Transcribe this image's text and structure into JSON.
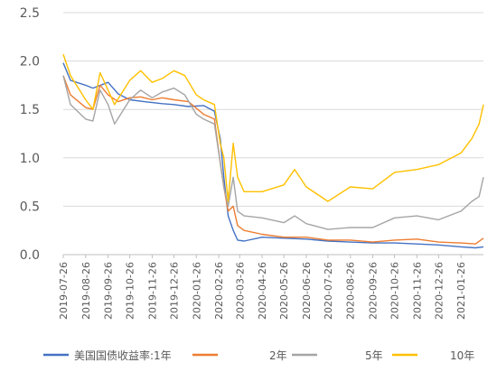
{
  "chart_data": {
    "type": "line",
    "title": "",
    "xlabel": "",
    "ylabel": "",
    "ylim": [
      0,
      2.5
    ],
    "y_ticks": [
      "0.0",
      "0.5",
      "1.0",
      "1.5",
      "2.0",
      "2.5"
    ],
    "x_range": [
      "2019-07-26",
      "2021-02-26"
    ],
    "x_tick_labels": [
      "2019-07-26",
      "2019-08-26",
      "2019-09-26",
      "2019-10-26",
      "2019-11-26",
      "2019-12-26",
      "2020-01-26",
      "2020-02-26",
      "2020-03-26",
      "2020-04-26",
      "2020-05-26",
      "2020-06-26",
      "2020-07-26",
      "2020-08-26",
      "2020-09-26",
      "2020-10-26",
      "2020-11-26",
      "2020-12-26",
      "2021-01-26"
    ],
    "grid": "horizontal",
    "legend_position": "bottom",
    "series": [
      {
        "name": "美国国债收益率:1年",
        "color": "#4472c4",
        "points": [
          [
            "2019-07-26",
            1.98
          ],
          [
            "2019-08-05",
            1.8
          ],
          [
            "2019-08-26",
            1.75
          ],
          [
            "2019-09-05",
            1.72
          ],
          [
            "2019-09-26",
            1.78
          ],
          [
            "2019-10-10",
            1.66
          ],
          [
            "2019-10-26",
            1.6
          ],
          [
            "2019-11-15",
            1.58
          ],
          [
            "2019-12-10",
            1.56
          ],
          [
            "2019-12-26",
            1.55
          ],
          [
            "2020-01-15",
            1.53
          ],
          [
            "2020-02-05",
            1.54
          ],
          [
            "2020-02-20",
            1.48
          ],
          [
            "2020-02-28",
            1.2
          ],
          [
            "2020-03-04",
            0.8
          ],
          [
            "2020-03-10",
            0.4
          ],
          [
            "2020-03-17",
            0.25
          ],
          [
            "2020-03-23",
            0.15
          ],
          [
            "2020-04-01",
            0.14
          ],
          [
            "2020-04-26",
            0.18
          ],
          [
            "2020-05-26",
            0.17
          ],
          [
            "2020-06-26",
            0.16
          ],
          [
            "2020-07-26",
            0.14
          ],
          [
            "2020-08-26",
            0.13
          ],
          [
            "2020-09-26",
            0.12
          ],
          [
            "2020-10-26",
            0.12
          ],
          [
            "2020-11-26",
            0.11
          ],
          [
            "2020-12-26",
            0.1
          ],
          [
            "2021-01-26",
            0.08
          ],
          [
            "2021-02-15",
            0.07
          ],
          [
            "2021-02-26",
            0.08
          ]
        ]
      },
      {
        "name": "2年",
        "color": "#ed7d31",
        "points": [
          [
            "2019-07-26",
            1.85
          ],
          [
            "2019-08-05",
            1.65
          ],
          [
            "2019-08-26",
            1.52
          ],
          [
            "2019-09-05",
            1.5
          ],
          [
            "2019-09-15",
            1.75
          ],
          [
            "2019-09-26",
            1.65
          ],
          [
            "2019-10-10",
            1.58
          ],
          [
            "2019-10-26",
            1.62
          ],
          [
            "2019-11-10",
            1.63
          ],
          [
            "2019-11-26",
            1.6
          ],
          [
            "2019-12-10",
            1.62
          ],
          [
            "2019-12-26",
            1.6
          ],
          [
            "2020-01-15",
            1.58
          ],
          [
            "2020-02-05",
            1.45
          ],
          [
            "2020-02-20",
            1.4
          ],
          [
            "2020-02-28",
            0.95
          ],
          [
            "2020-03-04",
            0.7
          ],
          [
            "2020-03-10",
            0.45
          ],
          [
            "2020-03-17",
            0.5
          ],
          [
            "2020-03-23",
            0.3
          ],
          [
            "2020-04-01",
            0.25
          ],
          [
            "2020-04-26",
            0.21
          ],
          [
            "2020-05-26",
            0.18
          ],
          [
            "2020-06-26",
            0.18
          ],
          [
            "2020-07-26",
            0.15
          ],
          [
            "2020-08-26",
            0.15
          ],
          [
            "2020-09-26",
            0.13
          ],
          [
            "2020-10-26",
            0.15
          ],
          [
            "2020-11-26",
            0.16
          ],
          [
            "2020-12-26",
            0.13
          ],
          [
            "2021-01-26",
            0.12
          ],
          [
            "2021-02-15",
            0.11
          ],
          [
            "2021-02-26",
            0.17
          ]
        ]
      },
      {
        "name": "5年",
        "color": "#a5a5a5",
        "points": [
          [
            "2019-07-26",
            1.85
          ],
          [
            "2019-08-05",
            1.55
          ],
          [
            "2019-08-26",
            1.4
          ],
          [
            "2019-09-05",
            1.38
          ],
          [
            "2019-09-15",
            1.7
          ],
          [
            "2019-09-26",
            1.55
          ],
          [
            "2019-10-05",
            1.35
          ],
          [
            "2019-10-26",
            1.6
          ],
          [
            "2019-11-10",
            1.7
          ],
          [
            "2019-11-26",
            1.62
          ],
          [
            "2019-12-10",
            1.68
          ],
          [
            "2019-12-26",
            1.72
          ],
          [
            "2020-01-10",
            1.65
          ],
          [
            "2020-01-26",
            1.45
          ],
          [
            "2020-02-05",
            1.4
          ],
          [
            "2020-02-20",
            1.35
          ],
          [
            "2020-02-28",
            0.95
          ],
          [
            "2020-03-04",
            0.7
          ],
          [
            "2020-03-10",
            0.5
          ],
          [
            "2020-03-17",
            0.8
          ],
          [
            "2020-03-23",
            0.45
          ],
          [
            "2020-04-01",
            0.4
          ],
          [
            "2020-04-26",
            0.38
          ],
          [
            "2020-05-26",
            0.33
          ],
          [
            "2020-06-10",
            0.4
          ],
          [
            "2020-06-26",
            0.32
          ],
          [
            "2020-07-26",
            0.26
          ],
          [
            "2020-08-26",
            0.28
          ],
          [
            "2020-09-26",
            0.28
          ],
          [
            "2020-10-26",
            0.38
          ],
          [
            "2020-11-26",
            0.4
          ],
          [
            "2020-12-26",
            0.36
          ],
          [
            "2021-01-26",
            0.45
          ],
          [
            "2021-02-10",
            0.55
          ],
          [
            "2021-02-20",
            0.6
          ],
          [
            "2021-02-26",
            0.8
          ]
        ]
      },
      {
        "name": "10年",
        "color": "#ffc000",
        "points": [
          [
            "2019-07-26",
            2.07
          ],
          [
            "2019-08-05",
            1.85
          ],
          [
            "2019-08-26",
            1.6
          ],
          [
            "2019-09-05",
            1.5
          ],
          [
            "2019-09-15",
            1.88
          ],
          [
            "2019-09-26",
            1.7
          ],
          [
            "2019-10-05",
            1.55
          ],
          [
            "2019-10-26",
            1.8
          ],
          [
            "2019-11-10",
            1.9
          ],
          [
            "2019-11-26",
            1.78
          ],
          [
            "2019-12-10",
            1.82
          ],
          [
            "2019-12-26",
            1.9
          ],
          [
            "2020-01-10",
            1.85
          ],
          [
            "2020-01-26",
            1.65
          ],
          [
            "2020-02-05",
            1.6
          ],
          [
            "2020-02-20",
            1.55
          ],
          [
            "2020-02-28",
            1.15
          ],
          [
            "2020-03-04",
            1.0
          ],
          [
            "2020-03-10",
            0.55
          ],
          [
            "2020-03-17",
            1.15
          ],
          [
            "2020-03-23",
            0.8
          ],
          [
            "2020-04-01",
            0.65
          ],
          [
            "2020-04-26",
            0.65
          ],
          [
            "2020-05-26",
            0.72
          ],
          [
            "2020-06-10",
            0.88
          ],
          [
            "2020-06-26",
            0.7
          ],
          [
            "2020-07-26",
            0.55
          ],
          [
            "2020-08-26",
            0.7
          ],
          [
            "2020-09-26",
            0.68
          ],
          [
            "2020-10-26",
            0.85
          ],
          [
            "2020-11-26",
            0.88
          ],
          [
            "2020-12-26",
            0.93
          ],
          [
            "2021-01-26",
            1.05
          ],
          [
            "2021-02-10",
            1.2
          ],
          [
            "2021-02-20",
            1.35
          ],
          [
            "2021-02-26",
            1.55
          ]
        ]
      }
    ]
  }
}
